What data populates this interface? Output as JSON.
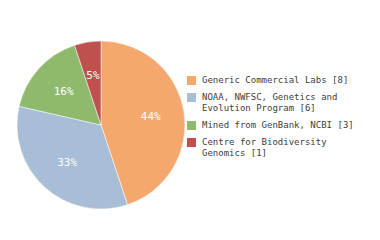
{
  "chart_data": {
    "type": "pie",
    "categories": [
      "Generic Commercial Labs [8]",
      "NOAA, NWFSC, Genetics and\nEvolution Program [6]",
      "Mined from GenBank, NCBI [3]",
      "Centre for Biodiversity\nGenomics [1]"
    ],
    "values": [
      44,
      33,
      16,
      5
    ],
    "value_labels": [
      "44%",
      "33%",
      "16%",
      "5%"
    ],
    "colors": [
      "#F5A86E",
      "#A8BDD6",
      "#8FBA6E",
      "#C0504D"
    ],
    "data_labels": true,
    "legend": "right"
  }
}
